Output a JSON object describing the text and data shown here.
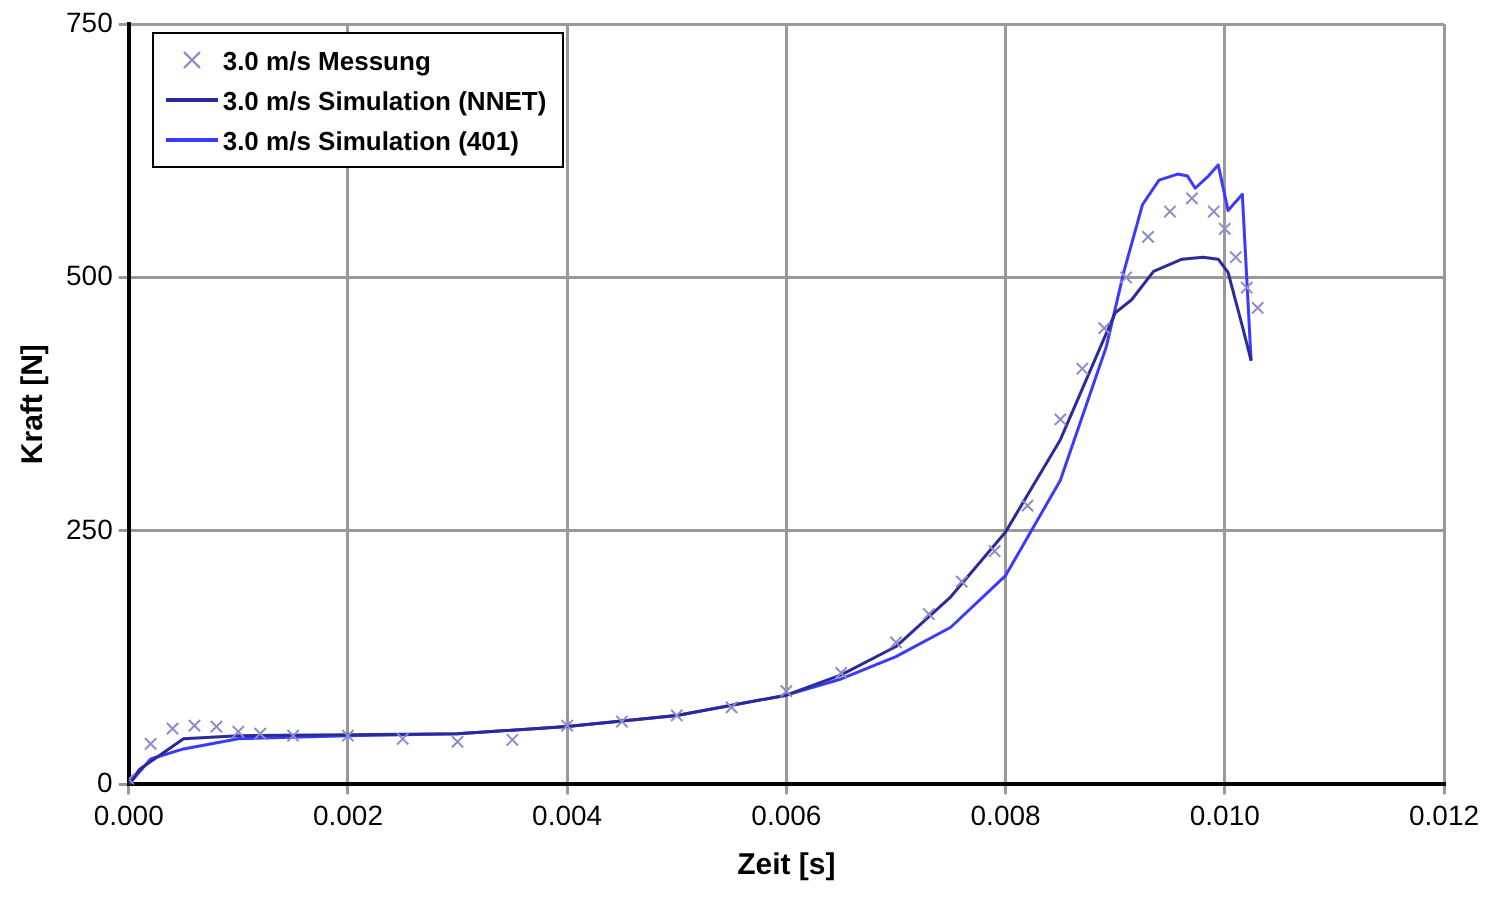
{
  "chart_data": {
    "type": "line",
    "xlabel": "Zeit [s]",
    "ylabel": "Kraft [N]",
    "xlim": [
      0,
      0.012
    ],
    "ylim": [
      0,
      750
    ],
    "xticks": [
      {
        "value": 0,
        "label": "0.000"
      },
      {
        "value": 0.002,
        "label": "0.002"
      },
      {
        "value": 0.004,
        "label": "0.004"
      },
      {
        "value": 0.006,
        "label": "0.006"
      },
      {
        "value": 0.008,
        "label": "0.008"
      },
      {
        "value": 0.01,
        "label": "0.010"
      },
      {
        "value": 0.012,
        "label": "0.012"
      }
    ],
    "yticks": [
      0,
      250,
      500,
      750
    ],
    "grid": true,
    "legend": "top left",
    "series": [
      {
        "name": "3.0 m/s Messung",
        "type": "scatter",
        "marker": "cross",
        "color": "#8c8cc8",
        "x": [
          0,
          0.0002,
          0.0004,
          0.0006,
          0.0008,
          0.001,
          0.0012,
          0.0015,
          0.002,
          0.0025,
          0.003,
          0.0035,
          0.004,
          0.0045,
          0.005,
          0.0055,
          0.006,
          0.0065,
          0.007,
          0.0073,
          0.0076,
          0.0079,
          0.0082,
          0.0085,
          0.0087,
          0.0089,
          0.0091,
          0.0093,
          0.0095,
          0.0097,
          0.0099,
          0.01,
          0.0101,
          0.0102,
          0.0103
        ],
        "values": [
          5,
          40,
          55,
          58,
          57,
          52,
          50,
          48,
          48,
          45,
          42,
          44,
          58,
          62,
          68,
          76,
          92,
          110,
          140,
          168,
          200,
          230,
          275,
          360,
          410,
          450,
          500,
          540,
          565,
          578,
          565,
          548,
          520,
          490,
          470
        ]
      },
      {
        "name": "3.0 m/s Simulation (NNET)",
        "type": "line",
        "marker": "none",
        "color": "#2a2a9a",
        "x": [
          0,
          0.0001,
          0.0003,
          0.0005,
          0.001,
          0.002,
          0.003,
          0.004,
          0.005,
          0.006,
          0.0065,
          0.007,
          0.0075,
          0.008,
          0.0085,
          0.009,
          0.00915,
          0.00935,
          0.00961,
          0.0098,
          0.00994,
          0.01003,
          0.01016,
          0.01024
        ],
        "values": [
          0,
          15,
          30,
          45,
          48,
          49,
          50,
          57,
          68,
          88,
          108,
          136,
          185,
          249,
          340,
          465,
          478,
          506,
          518,
          520,
          518,
          505,
          452,
          418
        ]
      },
      {
        "name": "3.0 m/s Simulation (401)",
        "type": "line",
        "marker": "none",
        "color": "#3a3aff",
        "x": [
          0,
          0.0002,
          0.0005,
          0.001,
          0.002,
          0.003,
          0.004,
          0.005,
          0.006,
          0.0065,
          0.007,
          0.0075,
          0.008,
          0.0085,
          0.00892,
          0.00908,
          0.00925,
          0.0094,
          0.00957,
          0.00966,
          0.00973,
          0.00985,
          0.00994,
          0.01003,
          0.01016,
          0.01024
        ],
        "values": [
          0,
          25,
          35,
          45,
          48,
          50,
          57,
          68,
          88,
          104,
          126,
          155,
          206,
          300,
          432,
          506,
          572,
          596,
          602,
          600,
          588,
          600,
          611,
          566,
          582,
          418
        ]
      }
    ]
  }
}
